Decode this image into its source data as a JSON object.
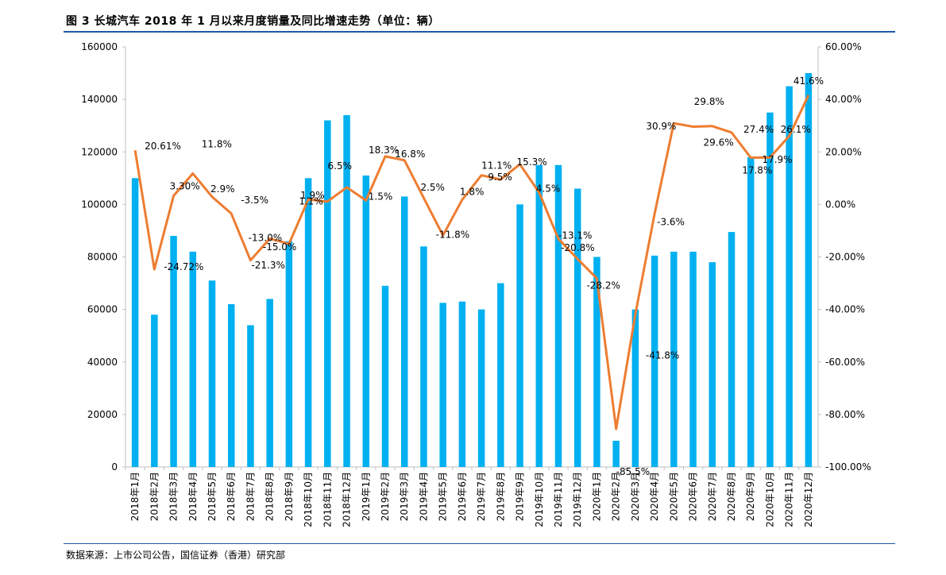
{
  "header": {
    "title": "图 3  长城汽车 2018 年 1 月以来月度销量及同比增速走势（单位：辆）"
  },
  "footer": {
    "source": "数据来源：上市公司公告，国信证券（香港）研究部"
  },
  "colors": {
    "bar": "#00B0F0",
    "line": "#ED7D31",
    "rule": "#1F5AA6",
    "axis": "#bfbfbf"
  },
  "chart_data": {
    "type": "bar+line",
    "title": "",
    "xlabel": "",
    "ylabel": "",
    "ylim": [
      0,
      160000
    ],
    "y2lim": [
      -100,
      60
    ],
    "grid": false,
    "legend": "none",
    "left_ticks": [
      "0",
      "20000",
      "40000",
      "60000",
      "80000",
      "100000",
      "120000",
      "140000",
      "160000"
    ],
    "right_ticks": [
      "-100.00%",
      "-80.00%",
      "-60.00%",
      "-40.00%",
      "-20.00%",
      "0.00%",
      "20.00%",
      "40.00%",
      "60.00%"
    ],
    "categories": [
      "2018年1月",
      "2018年2月",
      "2018年3月",
      "2018年4月",
      "2018年5月",
      "2018年6月",
      "2018年7月",
      "2018年8月",
      "2018年9月",
      "2018年10月",
      "2018年11月",
      "2018年12月",
      "2019年1月",
      "2019年2月",
      "2019年3月",
      "2019年4月",
      "2019年5月",
      "2019年6月",
      "2019年7月",
      "2019年8月",
      "2019年9月",
      "2019年10月",
      "2019年11月",
      "2019年12月",
      "2020年1月",
      "2020年2月",
      "2020年3月",
      "2020年4月",
      "2020年5月",
      "2020年6月",
      "2020年7月",
      "2020年8月",
      "2020年9月",
      "2020年10月",
      "2020年11月",
      "2020年12月"
    ],
    "series": [
      {
        "kind": "bar",
        "axis": "left",
        "values": [
          110000,
          58000,
          88000,
          82000,
          71000,
          62000,
          54000,
          64000,
          86000,
          110000,
          132000,
          134000,
          111000,
          69000,
          103000,
          84000,
          62500,
          63000,
          60000,
          70000,
          100000,
          115000,
          115000,
          106000,
          80000,
          10000,
          60000,
          80500,
          82000,
          82000,
          78000,
          89500,
          118000,
          135000,
          145000,
          150000
        ]
      },
      {
        "kind": "line",
        "axis": "right",
        "values": [
          20.61,
          -24.72,
          3.3,
          11.8,
          2.9,
          -3.5,
          -21.3,
          -13.0,
          -15.0,
          1.9,
          1.1,
          6.5,
          1.5,
          18.3,
          16.8,
          2.5,
          -11.8,
          1.8,
          11.1,
          9.5,
          15.3,
          4.5,
          -13.1,
          -20.8,
          -28.2,
          -85.5,
          -41.8,
          -3.6,
          30.9,
          29.6,
          29.8,
          27.4,
          17.8,
          17.9,
          26.1,
          41.6
        ],
        "labels": [
          "20.61%",
          "-24.72%",
          "3.30%",
          "11.8%",
          "2.9%",
          "-3.5%",
          "-21.3%",
          "-13.0%",
          "-15.0%",
          "1.9%",
          "1.1%",
          "6.5%",
          "1.5%",
          "18.3%",
          "16.8%",
          "2.5%",
          "-11.8%",
          "1.8%",
          "11.1%",
          "9.5%",
          "15.3%",
          "4.5%",
          "-13.1%",
          "-20.8%",
          "-28.2%",
          "-85.5%",
          "-41.8%",
          "-3.6%",
          "30.9%",
          "29.6%",
          "29.8%",
          "27.4%",
          "17.8%",
          "17.9%",
          "26.1%",
          "41.6%"
        ]
      }
    ]
  }
}
